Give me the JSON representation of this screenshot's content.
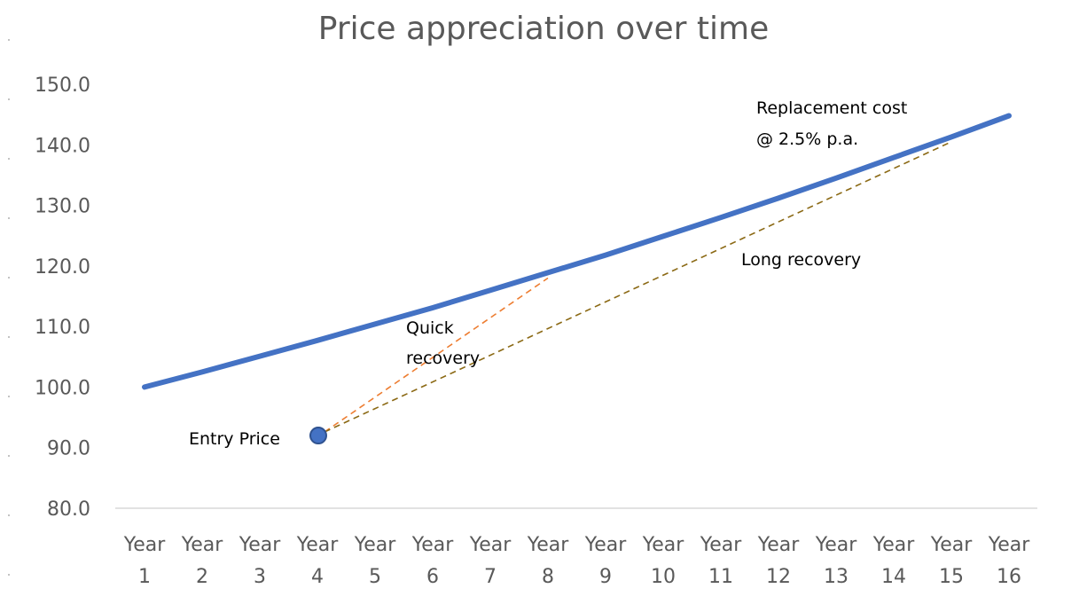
{
  "chart_data": {
    "type": "line",
    "title": "Price appreciation over time",
    "xlabel": "",
    "ylabel": "",
    "ylim": [
      80,
      150
    ],
    "y_ticks": [
      "80.0",
      "90.0",
      "100.0",
      "110.0",
      "120.0",
      "130.0",
      "140.0",
      "150.0"
    ],
    "categories": [
      [
        "Year",
        "1"
      ],
      [
        "Year",
        "2"
      ],
      [
        "Year",
        "3"
      ],
      [
        "Year",
        "4"
      ],
      [
        "Year",
        "5"
      ],
      [
        "Year",
        "6"
      ],
      [
        "Year",
        "7"
      ],
      [
        "Year",
        "8"
      ],
      [
        "Year",
        "9"
      ],
      [
        "Year",
        "10"
      ],
      [
        "Year",
        "11"
      ],
      [
        "Year",
        "12"
      ],
      [
        "Year",
        "13"
      ],
      [
        "Year",
        "14"
      ],
      [
        "Year",
        "15"
      ],
      [
        "Year",
        "16"
      ]
    ],
    "grid": false,
    "legend": "none",
    "series": [
      {
        "values": [
          100.0,
          102.5,
          105.1,
          107.7,
          110.4,
          113.1,
          116.0,
          118.9,
          121.8,
          124.9,
          128.0,
          131.2,
          134.5,
          137.9,
          141.3,
          144.8
        ],
        "color": "#4472C4"
      }
    ],
    "entry_point": {
      "x": 4,
      "y": 92.0,
      "color": "#4472C4",
      "label": "Entry Price"
    },
    "recovery_lines": [
      {
        "label": "Quick\nrecovery",
        "from": {
          "x": 4,
          "y": 92.0
        },
        "to": {
          "x": 8,
          "y": 118.0
        },
        "color": "#ED7D31",
        "style": "dashed"
      },
      {
        "label": "Long recovery",
        "from": {
          "x": 4,
          "y": 92.0
        },
        "to": {
          "x": 15,
          "y": 140.5
        },
        "color": "#8B6914",
        "style": "dashed"
      }
    ],
    "annotations": [
      {
        "text": "Replacement cost",
        "anchor": "series-end-upper"
      },
      {
        "text": "@ 2.5% p.a.",
        "anchor": "series-end-lower"
      }
    ]
  }
}
